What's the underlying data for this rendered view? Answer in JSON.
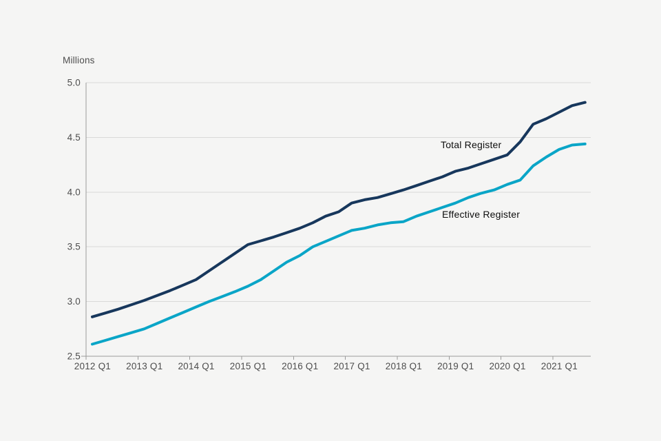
{
  "style": {
    "background_color": "#f5f5f4",
    "gridline_color": "#d9d9d8",
    "axis_color": "#9a9a9a",
    "tick_label_color": "#4d4d4d",
    "annotation_text_color": "#0d0d0d"
  },
  "chart_data": {
    "type": "line",
    "title": "",
    "ylabel": "Millions",
    "xlabel": "",
    "ylim": [
      2.5,
      5.0
    ],
    "grid": "horizontal",
    "legend_position": "inline-annotations",
    "y_ticks": [
      2.5,
      3.0,
      3.5,
      4.0,
      4.5,
      5.0
    ],
    "y_tick_labels": [
      "2.5",
      "3.0",
      "3.5",
      "4.0",
      "4.5",
      "5.0"
    ],
    "x_tick_labels": [
      "2012 Q1",
      "2013 Q1",
      "2014 Q1",
      "2015 Q1",
      "2016 Q1",
      "2017 Q1",
      "2018 Q1",
      "2019 Q1",
      "2020 Q1",
      "2021 Q1"
    ],
    "categories": [
      "2012 Q1",
      "2012 Q2",
      "2012 Q3",
      "2012 Q4",
      "2013 Q1",
      "2013 Q2",
      "2013 Q3",
      "2013 Q4",
      "2014 Q1",
      "2014 Q2",
      "2014 Q3",
      "2014 Q4",
      "2015 Q1",
      "2015 Q2",
      "2015 Q3",
      "2015 Q4",
      "2016 Q1",
      "2016 Q2",
      "2016 Q3",
      "2016 Q4",
      "2017 Q1",
      "2017 Q2",
      "2017 Q3",
      "2017 Q4",
      "2018 Q1",
      "2018 Q2",
      "2018 Q3",
      "2018 Q4",
      "2019 Q1",
      "2019 Q2",
      "2019 Q3",
      "2019 Q4",
      "2020 Q1",
      "2020 Q2",
      "2020 Q3",
      "2020 Q4",
      "2021 Q1",
      "2021 Q2",
      "2021 Q3"
    ],
    "series": [
      {
        "name": "Total Register",
        "color": "#17375c",
        "values": [
          2.86,
          2.895,
          2.93,
          2.97,
          3.01,
          3.055,
          3.1,
          3.15,
          3.2,
          3.28,
          3.36,
          3.44,
          3.52,
          3.555,
          3.59,
          3.63,
          3.67,
          3.72,
          3.78,
          3.82,
          3.9,
          3.93,
          3.95,
          3.985,
          4.02,
          4.06,
          4.1,
          4.14,
          4.19,
          4.22,
          4.26,
          4.3,
          4.34,
          4.46,
          4.62,
          4.67,
          4.73,
          4.79,
          4.82
        ]
      },
      {
        "name": "Effective Register",
        "color": "#0aa5c7",
        "values": [
          2.61,
          2.645,
          2.68,
          2.715,
          2.75,
          2.8,
          2.85,
          2.9,
          2.95,
          3.0,
          3.045,
          3.09,
          3.14,
          3.2,
          3.28,
          3.36,
          3.42,
          3.5,
          3.55,
          3.6,
          3.65,
          3.67,
          3.7,
          3.72,
          3.73,
          3.78,
          3.82,
          3.86,
          3.9,
          3.95,
          3.99,
          4.02,
          4.07,
          4.11,
          4.24,
          4.32,
          4.39,
          4.43,
          4.44
        ]
      }
    ]
  }
}
